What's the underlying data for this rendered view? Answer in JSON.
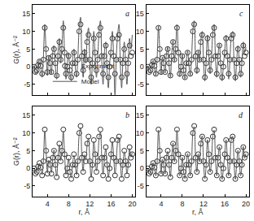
{
  "chart_data": [
    {
      "type": "line",
      "title": "a",
      "y_label": "G(r), Å⁻²",
      "tick_labels": "y",
      "legend": "lower left",
      "xlim": [
        1.2,
        20.6
      ],
      "ylim": [
        -8,
        17.5
      ],
      "xticks": [
        4,
        8,
        12,
        16,
        20
      ],
      "yticks": [
        -5,
        0,
        5,
        10,
        15
      ],
      "x": [
        1.5,
        1.75,
        2,
        2.25,
        2.5,
        2.75,
        3,
        3.25,
        3.5,
        3.75,
        4,
        4.25,
        4.5,
        4.75,
        5,
        5.25,
        5.5,
        5.75,
        6,
        6.25,
        6.5,
        6.75,
        7,
        7.25,
        7.5,
        7.75,
        8,
        8.25,
        8.5,
        8.75,
        9,
        9.25,
        9.5,
        9.75,
        10,
        10.25,
        10.5,
        10.75,
        11,
        11.25,
        11.5,
        11.75,
        12,
        12.25,
        12.5,
        12.75,
        13,
        13.25,
        13.5,
        13.75,
        14,
        14.25,
        14.5,
        14.75,
        15,
        15.25,
        15.5,
        15.75,
        16,
        16.25,
        16.5,
        16.75,
        17,
        17.25,
        17.5,
        17.75,
        18,
        18.25,
        18.5,
        18.75,
        19,
        19.25,
        19.5,
        19.75,
        20
      ],
      "series": [
        {
          "name": "Experiment",
          "type": "scatter",
          "marker": "circle-open",
          "color": "#333333",
          "values": [
            0,
            -1.5,
            -1,
            0.5,
            1.5,
            0.2,
            -2,
            2,
            11,
            5,
            -1.5,
            2.5,
            1,
            -1.5,
            3,
            5,
            1,
            -2.5,
            3,
            7,
            2,
            5,
            11,
            4,
            -2,
            0,
            3,
            -1,
            -3,
            1,
            4,
            1,
            -2,
            2,
            10,
            12,
            3,
            -1,
            4,
            2,
            7,
            9,
            2,
            -3,
            1,
            8,
            4,
            -1,
            2,
            9,
            11,
            3,
            -2,
            3,
            6,
            1,
            -3,
            0,
            4,
            8,
            3,
            -2,
            2,
            8,
            9,
            2,
            -3,
            1,
            5,
            2,
            -2,
            1,
            6,
            3,
            4
          ]
        },
        {
          "name": "Model",
          "type": "line",
          "line_style": "solid",
          "color": "#555555",
          "values": [
            0.5,
            -2,
            -1.5,
            1,
            2,
            0,
            -3,
            3,
            12,
            4,
            -2.5,
            3,
            0.5,
            -2,
            4,
            6,
            0,
            -3.5,
            4,
            8,
            1,
            6,
            13,
            3,
            -3.5,
            1,
            4,
            -2,
            -4,
            2,
            5,
            0,
            -3,
            3,
            11,
            14,
            2,
            -3,
            5,
            1,
            8,
            11,
            1,
            -5,
            2,
            10,
            3,
            -3,
            3,
            10,
            13,
            2,
            -5,
            4,
            7,
            -1,
            -6,
            1,
            5,
            10,
            2,
            -8,
            3,
            9,
            12,
            1,
            -6,
            2,
            7,
            1,
            -5,
            2,
            8,
            5,
            9
          ]
        }
      ]
    },
    {
      "type": "line",
      "title": "b",
      "y_label": "G(r), Å⁻²",
      "x_label": "r, Å",
      "tick_labels": true,
      "xlim": [
        1.2,
        20.6
      ],
      "ylim": [
        -8,
        17.5
      ],
      "xticks": [
        4,
        8,
        12,
        16,
        20
      ],
      "yticks": [
        -5,
        0,
        5,
        10,
        15
      ],
      "x": [
        1.5,
        1.75,
        2,
        2.25,
        2.5,
        2.75,
        3,
        3.25,
        3.5,
        3.75,
        4,
        4.25,
        4.5,
        4.75,
        5,
        5.25,
        5.5,
        5.75,
        6,
        6.25,
        6.5,
        6.75,
        7,
        7.25,
        7.5,
        7.75,
        8,
        8.25,
        8.5,
        8.75,
        9,
        9.25,
        9.5,
        9.75,
        10,
        10.25,
        10.5,
        10.75,
        11,
        11.25,
        11.5,
        11.75,
        12,
        12.25,
        12.5,
        12.75,
        13,
        13.25,
        13.5,
        13.75,
        14,
        14.25,
        14.5,
        14.75,
        15,
        15.25,
        15.5,
        15.75,
        16,
        16.25,
        16.5,
        16.75,
        17,
        17.25,
        17.5,
        17.75,
        18,
        18.25,
        18.5,
        18.75,
        19,
        19.25,
        19.5,
        19.75,
        20
      ],
      "series": [
        {
          "name": "Experiment",
          "type": "scatter",
          "marker": "circle-open",
          "color": "#333333",
          "values": [
            0,
            -1.5,
            -1,
            0.5,
            1.5,
            0.2,
            -2,
            2,
            11,
            5,
            -1.5,
            2.5,
            1,
            -1.5,
            3,
            5,
            1,
            -2.5,
            3,
            7,
            2,
            5,
            11,
            4,
            -2,
            0,
            3,
            -1,
            -3,
            1,
            4,
            1,
            -2,
            2,
            10,
            12,
            3,
            -1,
            4,
            2,
            7,
            9,
            2,
            -3,
            1,
            8,
            4,
            -1,
            2,
            9,
            11,
            3,
            -2,
            3,
            6,
            1,
            -3,
            0,
            4,
            8,
            3,
            -2,
            2,
            8,
            9,
            2,
            -3,
            1,
            5,
            2,
            -2,
            1,
            6,
            3,
            4
          ]
        },
        {
          "name": "Model",
          "type": "line",
          "line_style": "solid",
          "color": "#555555",
          "values": [
            0.2,
            -1.4,
            -0.8,
            0.6,
            1.4,
            0,
            -1.8,
            2.3,
            10.6,
            4.8,
            -1.3,
            2.3,
            1.2,
            -1.2,
            2.8,
            5.2,
            0.8,
            -2.2,
            3.2,
            6.7,
            2.2,
            5.2,
            10.5,
            3.8,
            -1.7,
            0.3,
            2.8,
            -0.8,
            -2.7,
            1.2,
            3.7,
            1.2,
            -1.8,
            2.3,
            9.6,
            11.5,
            3.2,
            -0.8,
            3.8,
            2.3,
            6.7,
            8.6,
            2.2,
            -2.6,
            1.2,
            7.6,
            4.2,
            -0.7,
            2.2,
            8.6,
            10.4,
            3.2,
            -1.7,
            2.8,
            5.6,
            1.2,
            -2.6,
            0.3,
            3.8,
            7.6,
            3.2,
            -1.6,
            2.2,
            7.5,
            8.6,
            2.3,
            -2.6,
            1.2,
            4.7,
            2.2,
            -1.6,
            1.2,
            5.6,
            3.2,
            4.5
          ]
        }
      ]
    },
    {
      "type": "line",
      "title": "c",
      "tick_labels": "y",
      "xlim": [
        1.2,
        20.6
      ],
      "ylim": [
        -8,
        17.5
      ],
      "xticks": [
        4,
        8,
        12,
        16,
        20
      ],
      "yticks": [
        -5,
        0,
        5,
        10,
        15
      ],
      "x": [
        1.5,
        1.75,
        2,
        2.25,
        2.5,
        2.75,
        3,
        3.25,
        3.5,
        3.75,
        4,
        4.25,
        4.5,
        4.75,
        5,
        5.25,
        5.5,
        5.75,
        6,
        6.25,
        6.5,
        6.75,
        7,
        7.25,
        7.5,
        7.75,
        8,
        8.25,
        8.5,
        8.75,
        9,
        9.25,
        9.5,
        9.75,
        10,
        10.25,
        10.5,
        10.75,
        11,
        11.25,
        11.5,
        11.75,
        12,
        12.25,
        12.5,
        12.75,
        13,
        13.25,
        13.5,
        13.75,
        14,
        14.25,
        14.5,
        14.75,
        15,
        15.25,
        15.5,
        15.75,
        16,
        16.25,
        16.5,
        16.75,
        17,
        17.25,
        17.5,
        17.75,
        18,
        18.25,
        18.5,
        18.75,
        19,
        19.25,
        19.5,
        19.75,
        20
      ],
      "series": [
        {
          "name": "Experiment",
          "type": "scatter",
          "marker": "circle-open",
          "color": "#333333",
          "values": [
            0,
            -1.5,
            -1,
            0.5,
            1.5,
            0.2,
            -2,
            2,
            11,
            5,
            -1.5,
            2.5,
            1,
            -1.5,
            3,
            5,
            1,
            -2.5,
            3,
            7,
            2,
            5,
            11,
            4,
            -2,
            0,
            3,
            -1,
            -3,
            1,
            4,
            1,
            -2,
            2,
            10,
            12,
            3,
            -1,
            4,
            2,
            7,
            9,
            2,
            -3,
            1,
            8,
            4,
            -1,
            2,
            9,
            11,
            3,
            -2,
            3,
            6,
            1,
            -3,
            0,
            4,
            8,
            3,
            -2,
            2,
            8,
            9,
            2,
            -3,
            1,
            5,
            2,
            -2,
            1,
            6,
            3,
            4
          ]
        },
        {
          "name": "Model",
          "type": "line",
          "line_style": "solid",
          "color": "#555555",
          "values": [
            0.3,
            -1.8,
            -1.2,
            0.8,
            1.8,
            0,
            -2.5,
            2.5,
            11.5,
            4.5,
            -2,
            2.8,
            0.8,
            -1.8,
            3.5,
            5.5,
            0.5,
            -3,
            3.5,
            7.5,
            1.5,
            5.5,
            12,
            3.5,
            -2.8,
            0.5,
            3.5,
            -1.5,
            -3.5,
            1.5,
            4.5,
            0.5,
            -2.5,
            2.5,
            10.5,
            13,
            2.5,
            -2,
            4.5,
            1.5,
            7.5,
            10,
            1.5,
            -4,
            1.5,
            9,
            3.5,
            -2,
            2.5,
            9.5,
            12,
            2.5,
            -3,
            3.5,
            6.5,
            0,
            -4,
            0.5,
            4.5,
            9,
            2.5,
            -3.5,
            2.5,
            8.5,
            10,
            1.5,
            -4,
            1.5,
            6,
            1.5,
            -3,
            1.5,
            7,
            4,
            5.5
          ]
        }
      ]
    },
    {
      "type": "line",
      "title": "d",
      "x_label": "r, Å",
      "tick_labels": true,
      "xlim": [
        1.2,
        20.6
      ],
      "ylim": [
        -8,
        17.5
      ],
      "xticks": [
        4,
        8,
        12,
        16,
        20
      ],
      "yticks": [
        -5,
        0,
        5,
        10,
        15
      ],
      "x": [
        1.5,
        1.75,
        2,
        2.25,
        2.5,
        2.75,
        3,
        3.25,
        3.5,
        3.75,
        4,
        4.25,
        4.5,
        4.75,
        5,
        5.25,
        5.5,
        5.75,
        6,
        6.25,
        6.5,
        6.75,
        7,
        7.25,
        7.5,
        7.75,
        8,
        8.25,
        8.5,
        8.75,
        9,
        9.25,
        9.5,
        9.75,
        10,
        10.25,
        10.5,
        10.75,
        11,
        11.25,
        11.5,
        11.75,
        12,
        12.25,
        12.5,
        12.75,
        13,
        13.25,
        13.5,
        13.75,
        14,
        14.25,
        14.5,
        14.75,
        15,
        15.25,
        15.5,
        15.75,
        16,
        16.25,
        16.5,
        16.75,
        17,
        17.25,
        17.5,
        17.75,
        18,
        18.25,
        18.5,
        18.75,
        19,
        19.25,
        19.5,
        19.75,
        20
      ],
      "series": [
        {
          "name": "Experiment",
          "type": "scatter",
          "marker": "circle-open",
          "color": "#333333",
          "values": [
            0,
            -1.5,
            -1,
            0.5,
            1.5,
            0.2,
            -2,
            2,
            11,
            5,
            -1.5,
            2.5,
            1,
            -1.5,
            3,
            5,
            1,
            -2.5,
            3,
            7,
            2,
            5,
            11,
            4,
            -2,
            0,
            3,
            -1,
            -3,
            1,
            4,
            1,
            -2,
            2,
            10,
            12,
            3,
            -1,
            4,
            2,
            7,
            9,
            2,
            -3,
            1,
            8,
            4,
            -1,
            2,
            9,
            11,
            3,
            -2,
            3,
            6,
            1,
            -3,
            0,
            4,
            8,
            3,
            -2,
            2,
            8,
            9,
            2,
            -3,
            1,
            5,
            2,
            -2,
            1,
            6,
            3,
            4
          ]
        },
        {
          "name": "Model",
          "type": "line",
          "line_style": "solid",
          "color": "#555555",
          "values": [
            0.1,
            -1.6,
            -1.1,
            0.4,
            1.6,
            0.3,
            -2.1,
            1.8,
            10.8,
            5.2,
            -1.6,
            2.6,
            0.9,
            -1.6,
            3.1,
            4.8,
            1.1,
            -2.4,
            2.9,
            7.2,
            1.9,
            4.9,
            10.8,
            4.2,
            -2.1,
            -0.1,
            3.1,
            -1.1,
            -2.9,
            0.9,
            4.2,
            0.9,
            -2.1,
            1.9,
            10.2,
            11.8,
            2.9,
            -1.1,
            4.1,
            1.9,
            7.1,
            9.2,
            1.9,
            -2.9,
            0.9,
            8.1,
            3.9,
            -1.1,
            1.9,
            9.1,
            10.8,
            2.9,
            -2.1,
            3.1,
            6.1,
            0.9,
            -3.1,
            -0.1,
            4.1,
            8.1,
            2.9,
            -2.1,
            1.9,
            8.2,
            9.1,
            1.9,
            -3.1,
            0.9,
            5.1,
            1.9,
            -2.1,
            0.9,
            6.2,
            2.9,
            4.2
          ]
        }
      ]
    }
  ]
}
